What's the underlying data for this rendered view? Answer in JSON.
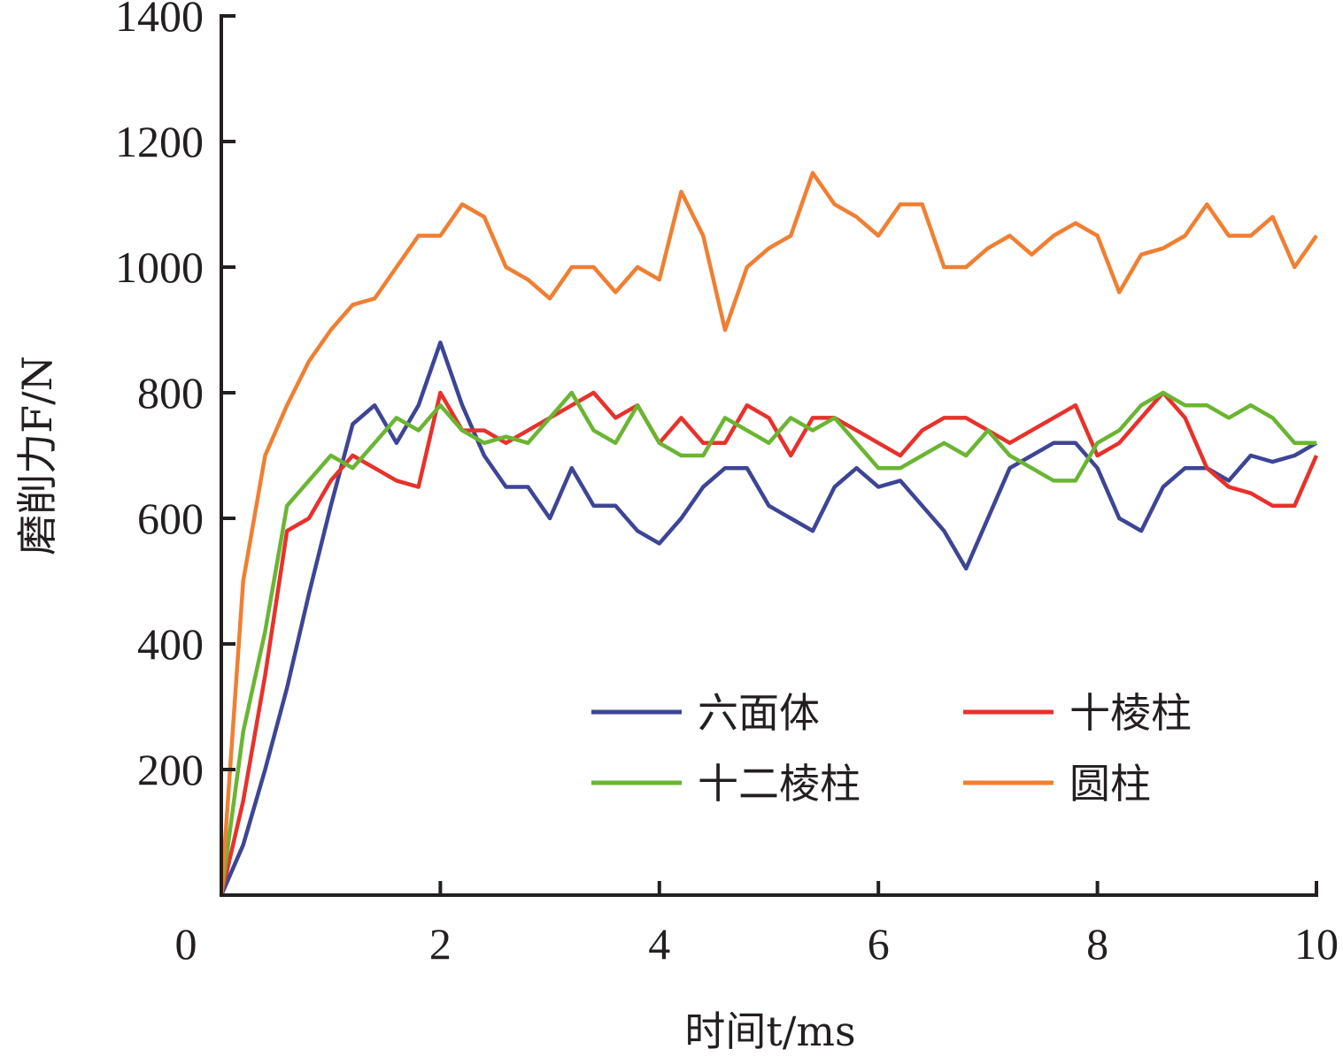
{
  "chart_data": {
    "type": "line",
    "title": "",
    "xlabel": "时间t/ms",
    "ylabel": "磨削力F/N",
    "xlim": [
      0,
      10
    ],
    "ylim": [
      0,
      1400
    ],
    "xticks": [
      "0",
      "2",
      "4",
      "6",
      "8",
      "10"
    ],
    "yticks": [
      "200",
      "400",
      "600",
      "800",
      "1000",
      "1200",
      "1400"
    ],
    "grid": false,
    "legend_position": "bottom-right",
    "x": [
      0,
      0.2,
      0.4,
      0.6,
      0.8,
      1.0,
      1.2,
      1.4,
      1.6,
      1.8,
      2.0,
      2.2,
      2.4,
      2.6,
      2.8,
      3.0,
      3.2,
      3.4,
      3.6,
      3.8,
      4.0,
      4.2,
      4.4,
      4.6,
      4.8,
      5.0,
      5.2,
      5.4,
      5.6,
      5.8,
      6.0,
      6.2,
      6.4,
      6.6,
      6.8,
      7.0,
      7.2,
      7.4,
      7.6,
      7.8,
      8.0,
      8.2,
      8.4,
      8.6,
      8.8,
      9.0,
      9.2,
      9.4,
      9.6,
      9.8,
      10.0
    ],
    "series": [
      {
        "name": "六面体",
        "color": "#3d4596",
        "values": [
          0,
          80,
          200,
          330,
          480,
          620,
          750,
          780,
          720,
          780,
          880,
          780,
          700,
          650,
          650,
          600,
          680,
          620,
          620,
          580,
          560,
          600,
          650,
          680,
          680,
          620,
          600,
          580,
          650,
          680,
          650,
          660,
          620,
          580,
          520,
          600,
          680,
          700,
          720,
          720,
          680,
          600,
          580,
          650,
          680,
          680,
          660,
          700,
          690,
          700,
          720
        ]
      },
      {
        "name": "十棱柱",
        "color": "#e8312b",
        "values": [
          0,
          150,
          350,
          580,
          600,
          660,
          700,
          680,
          660,
          650,
          800,
          740,
          740,
          720,
          740,
          760,
          780,
          800,
          760,
          780,
          720,
          760,
          720,
          720,
          780,
          760,
          700,
          760,
          760,
          740,
          720,
          700,
          740,
          760,
          760,
          740,
          720,
          740,
          760,
          780,
          700,
          720,
          760,
          800,
          760,
          680,
          650,
          640,
          620,
          620,
          700
        ]
      },
      {
        "name": "十二棱柱",
        "color": "#6ab532",
        "values": [
          0,
          260,
          420,
          620,
          660,
          700,
          680,
          720,
          760,
          740,
          780,
          740,
          720,
          730,
          720,
          760,
          800,
          740,
          720,
          780,
          720,
          700,
          700,
          760,
          740,
          720,
          760,
          740,
          760,
          720,
          680,
          680,
          700,
          720,
          700,
          740,
          700,
          680,
          660,
          660,
          720,
          740,
          780,
          800,
          780,
          780,
          760,
          780,
          760,
          720,
          720
        ]
      },
      {
        "name": "圆柱",
        "color": "#f07f32",
        "values": [
          0,
          500,
          700,
          780,
          850,
          900,
          940,
          950,
          1000,
          1050,
          1050,
          1100,
          1080,
          1000,
          980,
          950,
          1000,
          1000,
          960,
          1000,
          980,
          1120,
          1050,
          900,
          1000,
          1030,
          1050,
          1150,
          1100,
          1080,
          1050,
          1100,
          1100,
          1000,
          1000,
          1030,
          1050,
          1020,
          1050,
          1070,
          1050,
          960,
          1020,
          1030,
          1050,
          1100,
          1050,
          1050,
          1080,
          1000,
          1050
        ]
      }
    ]
  }
}
